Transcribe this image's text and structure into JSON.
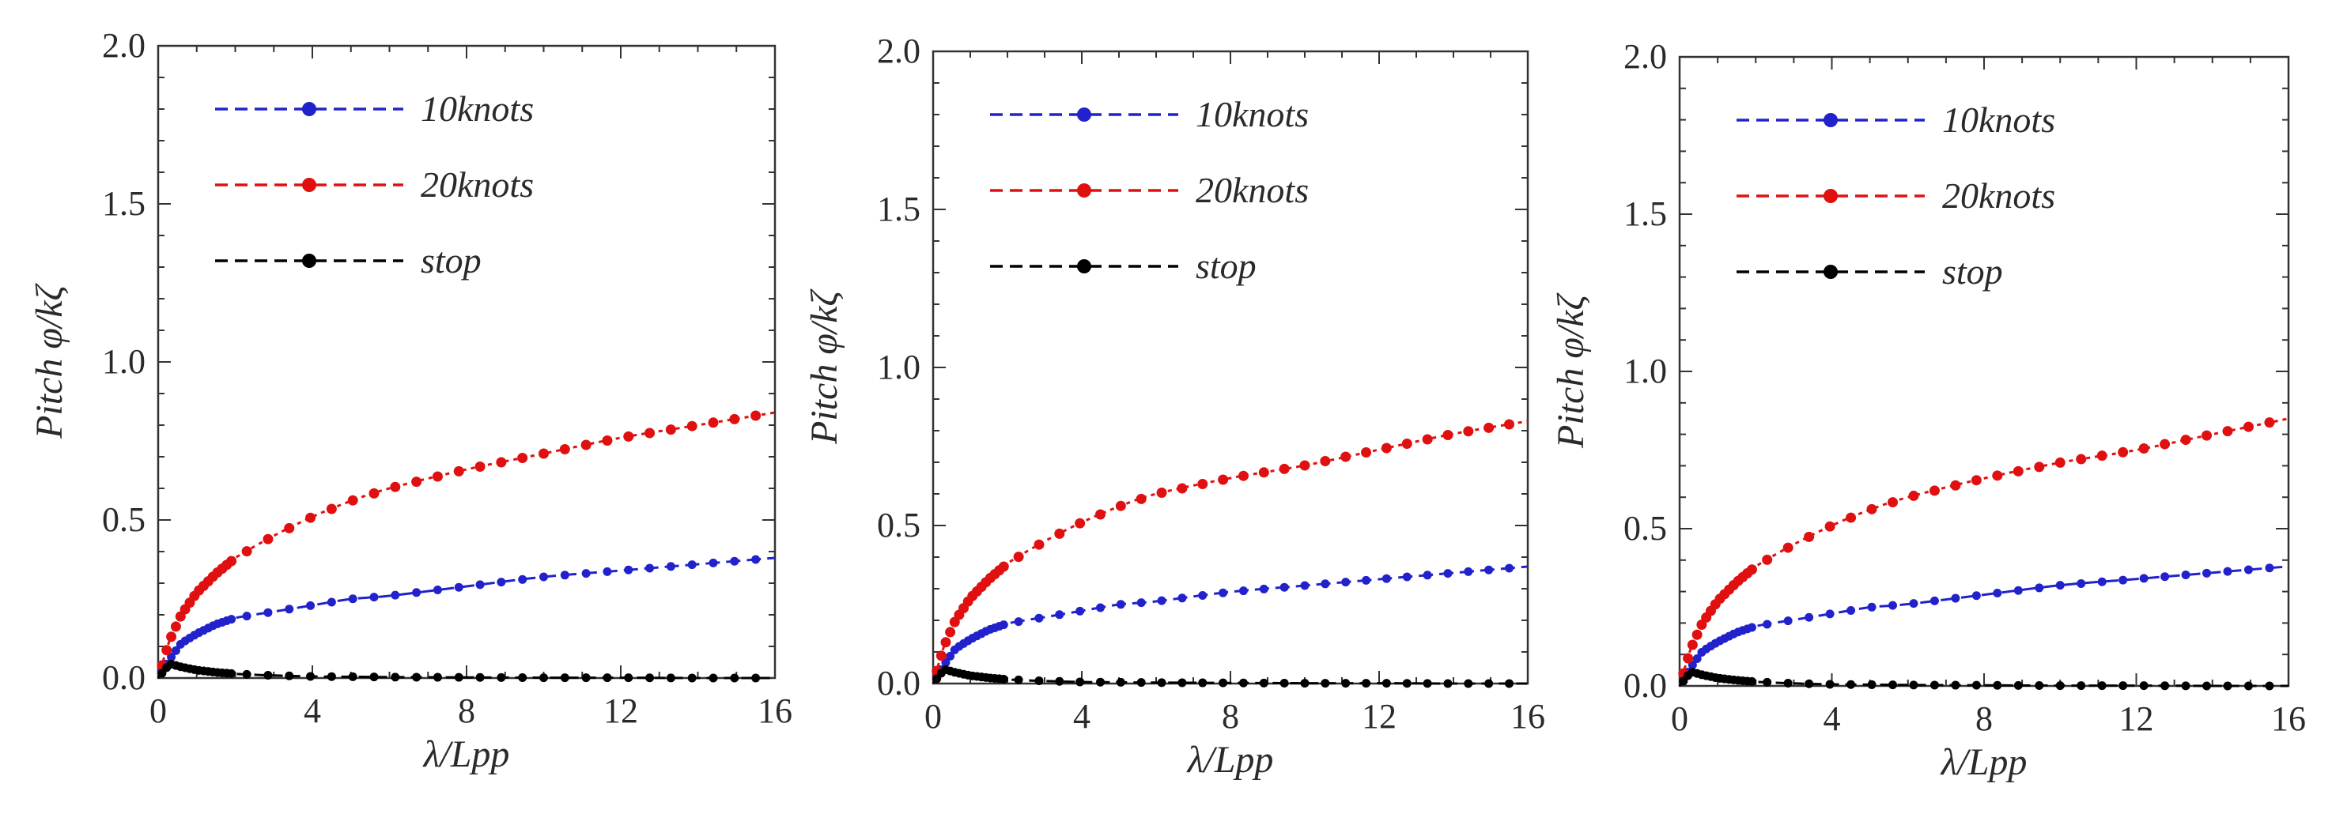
{
  "chart_data": [
    {
      "type": "line",
      "panel": "left",
      "xlabel": "λ/Lpp",
      "ylabel": "Pitch φ/kζ",
      "xlim": [
        0,
        16
      ],
      "ylim": [
        0,
        2.0
      ],
      "xticks": [
        0,
        4,
        8,
        12,
        16
      ],
      "xtick_labels": [
        "0",
        "4",
        "8",
        "12",
        "16"
      ],
      "yticks": [
        0,
        0.5,
        1.0,
        1.5,
        2.0
      ],
      "ytick_labels": [
        "0.0",
        "0.5",
        "1.0",
        "1.5",
        "2.0"
      ],
      "legend": [
        {
          "label": "10knots",
          "color": "#2222cc"
        },
        {
          "label": "20knots",
          "color": "#e01010"
        },
        {
          "label": "stop",
          "color": "#000000"
        }
      ],
      "series": [
        {
          "name": "10knots",
          "color": "#2222cc",
          "x": [
            0,
            0.3,
            0.6,
            1,
            1.5,
            2,
            3,
            4,
            5,
            6,
            8,
            10,
            12,
            14,
            16
          ],
          "y": [
            0,
            0.06,
            0.11,
            0.14,
            0.17,
            0.19,
            0.21,
            0.23,
            0.25,
            0.26,
            0.29,
            0.32,
            0.34,
            0.36,
            0.38
          ]
        },
        {
          "name": "20knots",
          "color": "#e01010",
          "x": [
            0,
            0.3,
            0.6,
            1,
            1.5,
            2,
            3,
            4,
            5,
            6,
            8,
            10,
            12,
            14,
            16
          ],
          "y": [
            0,
            0.12,
            0.2,
            0.27,
            0.33,
            0.38,
            0.45,
            0.51,
            0.56,
            0.6,
            0.66,
            0.71,
            0.76,
            0.8,
            0.84
          ]
        },
        {
          "name": "stop",
          "color": "#000000",
          "x": [
            0,
            0.3,
            0.6,
            1,
            1.5,
            2,
            3,
            4,
            5,
            6,
            8,
            10,
            12,
            14,
            16
          ],
          "y": [
            0,
            0.045,
            0.035,
            0.025,
            0.018,
            0.013,
            0.008,
            0.005,
            0.004,
            0.003,
            0.002,
            0.001,
            0.001,
            0,
            0
          ]
        }
      ]
    },
    {
      "type": "line",
      "panel": "middle",
      "xlabel": "λ/Lpp",
      "ylabel": "Pitch φ/kζ",
      "xlim": [
        0,
        16
      ],
      "ylim": [
        0,
        2.0
      ],
      "xticks": [
        0,
        4,
        8,
        12,
        16
      ],
      "xtick_labels": [
        "0",
        "4",
        "8",
        "12",
        "16"
      ],
      "yticks": [
        0,
        0.5,
        1.0,
        1.5,
        2.0
      ],
      "ytick_labels": [
        "0.0",
        "0.5",
        "1.0",
        "1.5",
        "2.0"
      ],
      "legend": [
        {
          "label": "10knots",
          "color": "#2222cc"
        },
        {
          "label": "20knots",
          "color": "#e01010"
        },
        {
          "label": "stop",
          "color": "#000000"
        }
      ],
      "series": [
        {
          "name": "10knots",
          "color": "#2222cc",
          "x": [
            0,
            0.3,
            0.6,
            1,
            1.5,
            2,
            3,
            4,
            5,
            6,
            8,
            10,
            12,
            14,
            16
          ],
          "y": [
            0,
            0.06,
            0.11,
            0.14,
            0.17,
            0.19,
            0.21,
            0.23,
            0.25,
            0.26,
            0.29,
            0.31,
            0.33,
            0.35,
            0.37
          ]
        },
        {
          "name": "20knots",
          "color": "#e01010",
          "x": [
            0,
            0.3,
            0.6,
            1,
            1.5,
            2,
            3,
            4,
            5,
            6,
            8,
            10,
            12,
            14,
            16
          ],
          "y": [
            0,
            0.12,
            0.2,
            0.27,
            0.33,
            0.38,
            0.45,
            0.51,
            0.56,
            0.6,
            0.65,
            0.69,
            0.74,
            0.79,
            0.83
          ]
        },
        {
          "name": "stop",
          "color": "#000000",
          "x": [
            0,
            0.3,
            0.6,
            1,
            1.5,
            2,
            3,
            4,
            5,
            6,
            8,
            10,
            12,
            14,
            16
          ],
          "y": [
            0,
            0.045,
            0.035,
            0.025,
            0.018,
            0.013,
            0.008,
            0.005,
            0.004,
            0.003,
            0.002,
            0.001,
            0.001,
            0,
            0
          ]
        }
      ]
    },
    {
      "type": "line",
      "panel": "right",
      "xlabel": "λ/Lpp",
      "ylabel": "Pitch φ/kζ",
      "xlim": [
        0,
        16
      ],
      "ylim": [
        0,
        2.0
      ],
      "xticks": [
        0,
        4,
        8,
        12,
        16
      ],
      "xtick_labels": [
        "0",
        "4",
        "8",
        "12",
        "16"
      ],
      "yticks": [
        0,
        0.5,
        1.0,
        1.5,
        2.0
      ],
      "ytick_labels": [
        "0.0",
        "0.5",
        "1.0",
        "1.5",
        "2.0"
      ],
      "legend": [
        {
          "label": "10knots",
          "color": "#2222cc"
        },
        {
          "label": "20knots",
          "color": "#e01010"
        },
        {
          "label": "stop",
          "color": "#000000"
        }
      ],
      "series": [
        {
          "name": "10knots",
          "color": "#2222cc",
          "x": [
            0,
            0.3,
            0.6,
            1,
            1.5,
            2,
            3,
            4,
            5,
            6,
            8,
            10,
            12,
            14,
            16
          ],
          "y": [
            0,
            0.06,
            0.11,
            0.14,
            0.17,
            0.19,
            0.21,
            0.23,
            0.25,
            0.26,
            0.29,
            0.32,
            0.34,
            0.36,
            0.38
          ]
        },
        {
          "name": "20knots",
          "color": "#e01010",
          "x": [
            0,
            0.3,
            0.6,
            1,
            1.5,
            2,
            3,
            4,
            5,
            6,
            8,
            10,
            12,
            14,
            16
          ],
          "y": [
            0,
            0.12,
            0.2,
            0.27,
            0.33,
            0.38,
            0.45,
            0.51,
            0.56,
            0.6,
            0.66,
            0.71,
            0.75,
            0.8,
            0.85
          ]
        },
        {
          "name": "stop",
          "color": "#000000",
          "x": [
            0,
            0.3,
            0.6,
            1,
            1.5,
            2,
            3,
            4,
            5,
            6,
            8,
            10,
            12,
            14,
            16
          ],
          "y": [
            0,
            0.045,
            0.035,
            0.025,
            0.018,
            0.013,
            0.008,
            0.005,
            0.004,
            0.003,
            0.002,
            0.001,
            0.001,
            0,
            0
          ]
        }
      ]
    }
  ]
}
